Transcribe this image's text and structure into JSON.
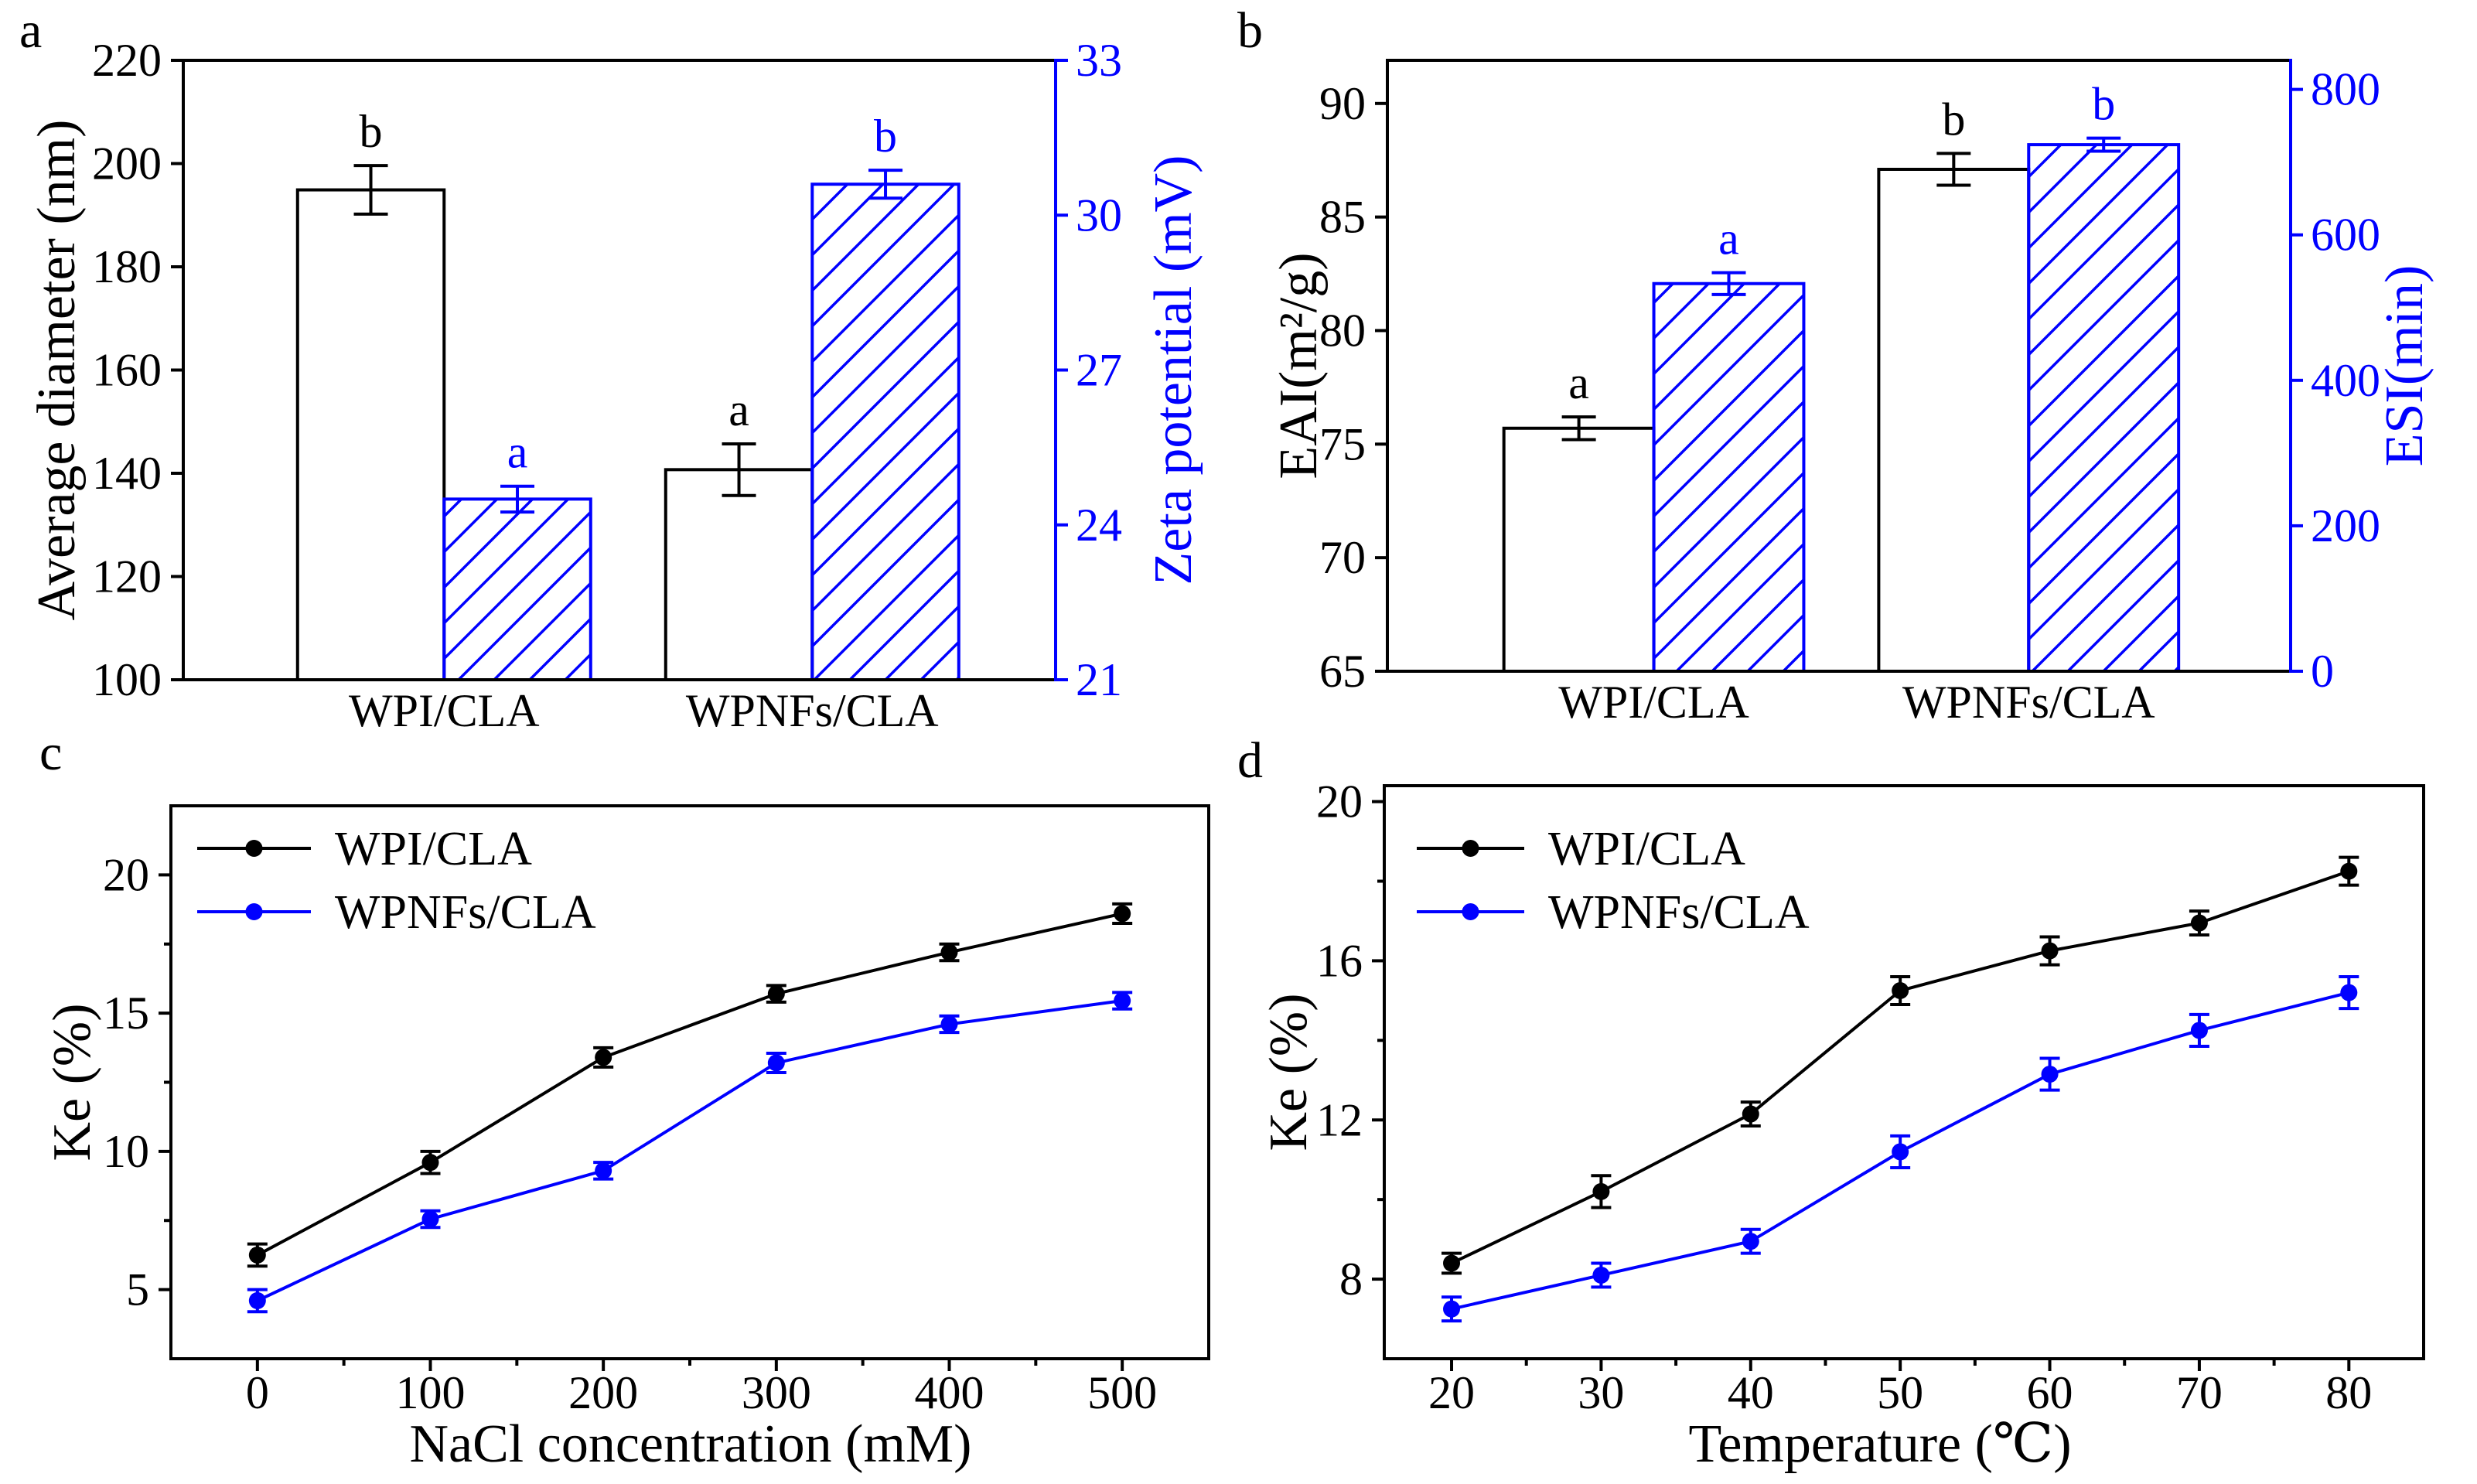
{
  "chart_data": [
    {
      "panel": "a",
      "type": "bar",
      "categories": [
        "WPI/CLA",
        "WPNFs/CLA"
      ],
      "left_axis": {
        "label": "Average diameter (nm)",
        "ylim": [
          100,
          220
        ],
        "ticks": [
          100,
          120,
          140,
          160,
          180,
          200,
          220
        ],
        "color": "#000000"
      },
      "right_axis": {
        "label": "Zeta potential (mV)",
        "ylim": [
          21,
          33
        ],
        "ticks": [
          21,
          24,
          27,
          30,
          33
        ],
        "color": "#0000ff"
      },
      "left_series": {
        "values": [
          194.9,
          140.7
        ],
        "errors": [
          4.7,
          5.0
        ],
        "significance": [
          "b",
          "a"
        ],
        "color": "#000000"
      },
      "right_series": {
        "values": [
          24.5,
          30.6
        ],
        "errors": [
          0.25,
          0.27
        ],
        "significance": [
          "a",
          "b"
        ],
        "color": "#0000ff"
      }
    },
    {
      "panel": "b",
      "type": "bar",
      "categories": [
        "WPI/CLA",
        "WPNFs/CLA"
      ],
      "left_axis": {
        "label": "EAI(m²/g)",
        "ylim": [
          65,
          91.9
        ],
        "ticks": [
          65,
          70,
          75,
          80,
          85,
          90
        ],
        "color": "#000000"
      },
      "right_axis": {
        "label": "ESI(min)",
        "ylim": [
          0,
          840
        ],
        "ticks": [
          0,
          200,
          400,
          600,
          800
        ],
        "color": "#0000ff"
      },
      "left_series": {
        "values": [
          75.7,
          87.1
        ],
        "errors": [
          0.5,
          0.7
        ],
        "significance": [
          "a",
          "b"
        ],
        "color": "#000000"
      },
      "right_series": {
        "values": [
          533,
          724
        ],
        "errors": [
          15,
          9
        ],
        "significance": [
          "a",
          "b"
        ],
        "color": "#0000ff"
      }
    },
    {
      "panel": "c",
      "type": "line",
      "xlabel": "NaCl concentration (mM)",
      "ylabel": "Ke (%)",
      "xlim": [
        -50,
        550
      ],
      "ylim": [
        2.5,
        22.5
      ],
      "xticks": [
        0,
        100,
        200,
        300,
        400,
        500
      ],
      "yticks": [
        5,
        10,
        15,
        20
      ],
      "x": [
        0,
        100,
        200,
        300,
        400,
        500
      ],
      "series": [
        {
          "name": "WPI/CLA",
          "color": "#000000",
          "values": [
            6.25,
            9.6,
            13.4,
            15.7,
            17.2,
            18.6
          ],
          "errors": [
            0.4,
            0.4,
            0.35,
            0.3,
            0.3,
            0.35
          ]
        },
        {
          "name": "WPNFs/CLA",
          "color": "#0000ff",
          "values": [
            4.6,
            7.55,
            9.3,
            13.2,
            14.6,
            15.45
          ],
          "errors": [
            0.4,
            0.3,
            0.3,
            0.35,
            0.3,
            0.3
          ]
        }
      ]
    },
    {
      "panel": "d",
      "type": "line",
      "xlabel": "Temperature (℃)",
      "ylabel": "Ke (%)",
      "xlim": [
        15.5,
        85
      ],
      "ylim": [
        6,
        20.4
      ],
      "xticks": [
        20,
        30,
        40,
        50,
        60,
        70,
        80
      ],
      "yticks": [
        8,
        12,
        16,
        20
      ],
      "x": [
        20,
        30,
        40,
        50,
        60,
        70,
        80
      ],
      "series": [
        {
          "name": "WPI/CLA",
          "color": "#000000",
          "values": [
            8.4,
            10.2,
            12.15,
            15.25,
            16.25,
            16.95,
            18.25
          ],
          "errors": [
            0.25,
            0.4,
            0.3,
            0.35,
            0.35,
            0.3,
            0.35
          ]
        },
        {
          "name": "WPNFs/CLA",
          "color": "#0000ff",
          "values": [
            7.25,
            8.1,
            8.95,
            11.2,
            13.15,
            14.25,
            15.2
          ],
          "errors": [
            0.3,
            0.3,
            0.3,
            0.4,
            0.4,
            0.4,
            0.4
          ]
        }
      ]
    }
  ]
}
